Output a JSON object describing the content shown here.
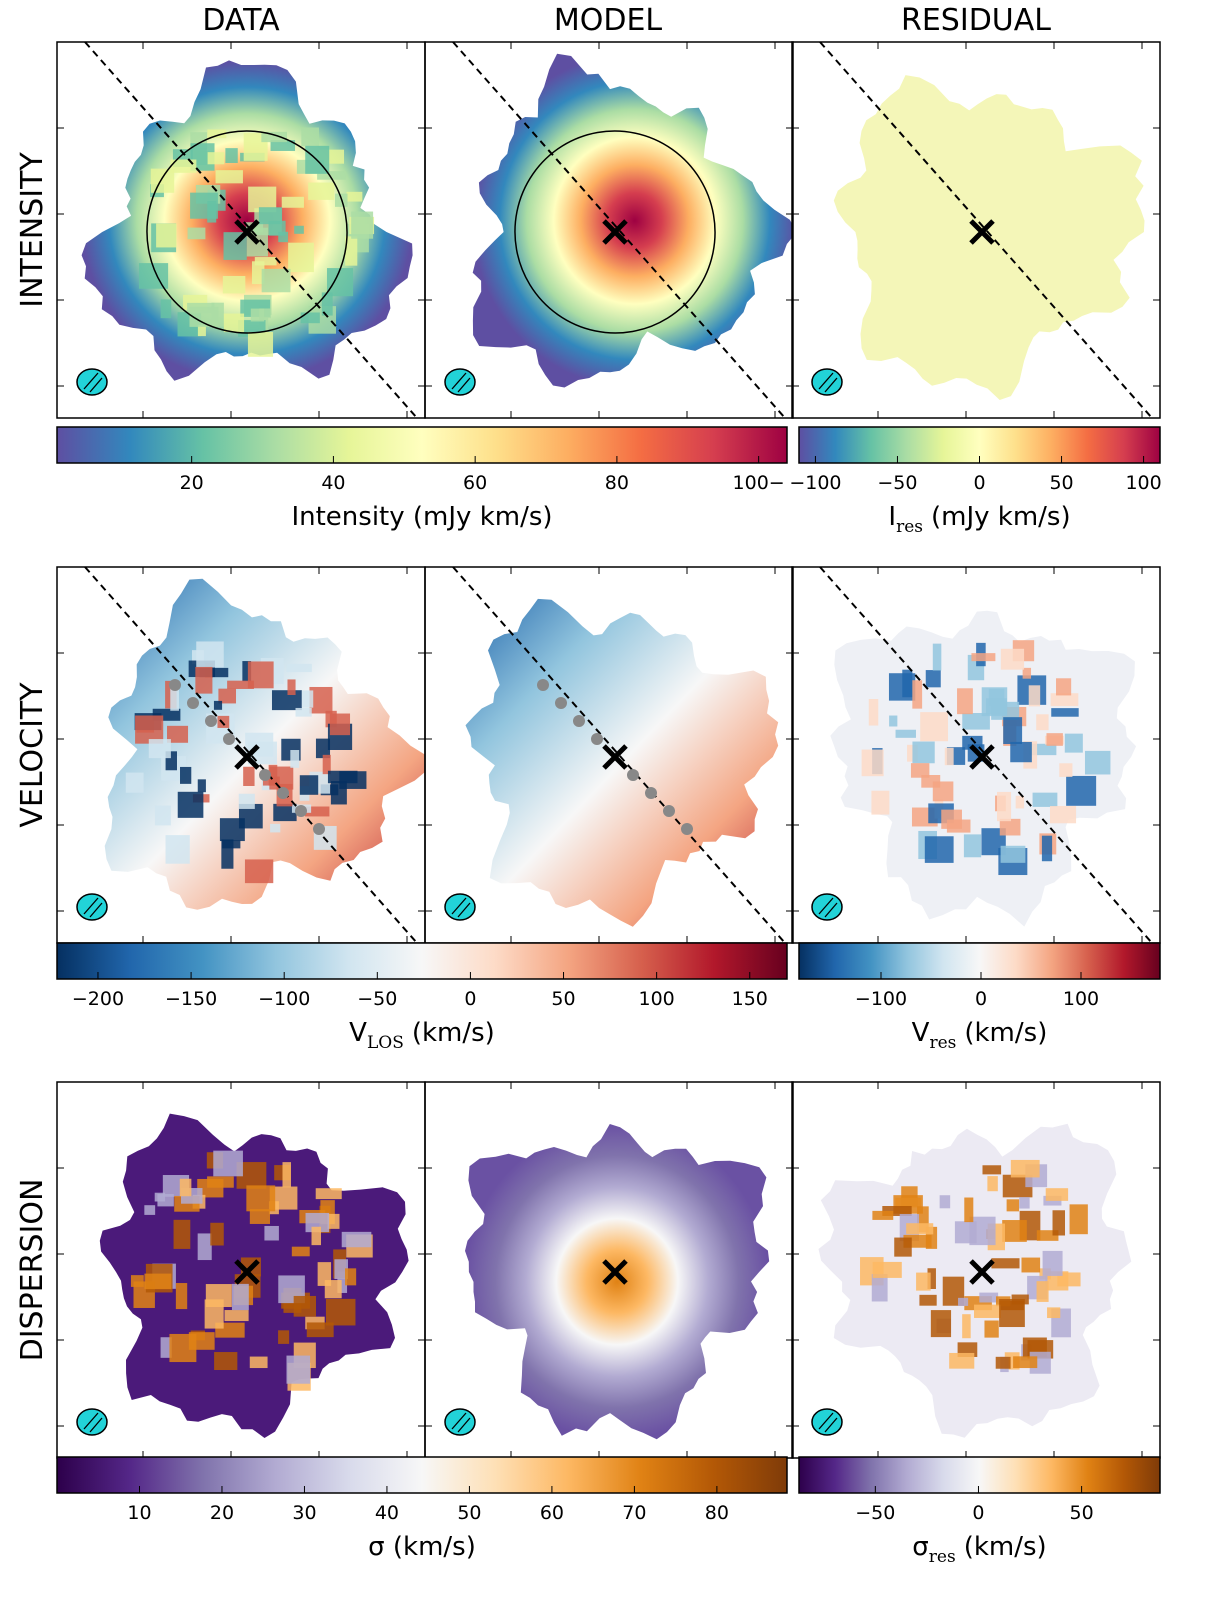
{
  "columns": [
    "DATA",
    "MODEL",
    "RESIDUAL"
  ],
  "rows": [
    {
      "label": "INTENSITY",
      "colorbars": [
        {
          "label": "Intensity (mJy km/s)",
          "lim": [
            1,
            104
          ],
          "ticks": [
            20,
            40,
            60,
            80,
            {
              "value": 100,
              "label": "100−"
            }
          ],
          "colors": [
            "#5e4fa2",
            "#3288bd",
            "#66c2a5",
            "#abdda4",
            "#e6f598",
            "#ffffbf",
            "#fee08b",
            "#fdae61",
            "#f46d43",
            "#d53e4f",
            "#9e0142"
          ]
        },
        {
          "symbol": "I",
          "subscript": "res",
          "unit": "(mJy km/s)",
          "lim": [
            -110,
            110
          ],
          "ticks": [
            {
              "value": -100,
              "label": "−100"
            },
            {
              "value": -50,
              "label": "−50"
            },
            0,
            50,
            100
          ],
          "colors": [
            "#5e4fa2",
            "#3288bd",
            "#66c2a5",
            "#abdda4",
            "#e6f598",
            "#ffffbf",
            "#fee08b",
            "#fdae61",
            "#f46d43",
            "#d53e4f",
            "#9e0142"
          ]
        }
      ]
    },
    {
      "label": "VELOCITY",
      "colorbars": [
        {
          "symbol": "V",
          "subscript": "LOS",
          "unit": "(km/s)",
          "lim": [
            -222,
            170
          ],
          "ticks": [
            {
              "value": -200,
              "label": "−200"
            },
            {
              "value": -150,
              "label": "−150"
            },
            {
              "value": -100,
              "label": "−100"
            },
            {
              "value": -50,
              "label": "−50"
            },
            0,
            50,
            100,
            150
          ],
          "colors": [
            "#053061",
            "#2166ac",
            "#4393c3",
            "#92c5de",
            "#d1e5f0",
            "#f7f7f7",
            "#fddbc7",
            "#f4a582",
            "#d6604d",
            "#b2182b",
            "#67001f"
          ]
        },
        {
          "symbol": "V",
          "subscript": "res",
          "unit": "(km/s)",
          "lim": [
            -182,
            179
          ],
          "ticks": [
            {
              "value": -100,
              "label": "−100"
            },
            0,
            100
          ],
          "colors": [
            "#053061",
            "#2166ac",
            "#4393c3",
            "#92c5de",
            "#d1e5f0",
            "#f7f7f7",
            "#fddbc7",
            "#f4a582",
            "#d6604d",
            "#b2182b",
            "#67001f"
          ]
        }
      ]
    },
    {
      "label": "DISPERSION",
      "colorbars": [
        {
          "label": "σ (km/s)",
          "lim": [
            0,
            88.5
          ],
          "ticks": [
            10,
            20,
            30,
            40,
            50,
            60,
            70,
            80
          ],
          "colors": [
            "#2d004b",
            "#542788",
            "#8073ac",
            "#b2abd2",
            "#d8daeb",
            "#f7f7f7",
            "#fee0b6",
            "#fdb863",
            "#e08214",
            "#b35806",
            "#7f3b08"
          ]
        },
        {
          "symbol": "σ",
          "subscript": "res",
          "unit": "(km/s)",
          "lim": [
            -87,
            88
          ],
          "ticks": [
            {
              "value": -50,
              "label": "−50"
            },
            0,
            50
          ],
          "colors": [
            "#2d004b",
            "#542788",
            "#8073ac",
            "#b2abd2",
            "#d8daeb",
            "#f7f7f7",
            "#fee0b6",
            "#fdb863",
            "#e08214",
            "#b35806",
            "#7f3b08"
          ]
        }
      ]
    }
  ]
}
